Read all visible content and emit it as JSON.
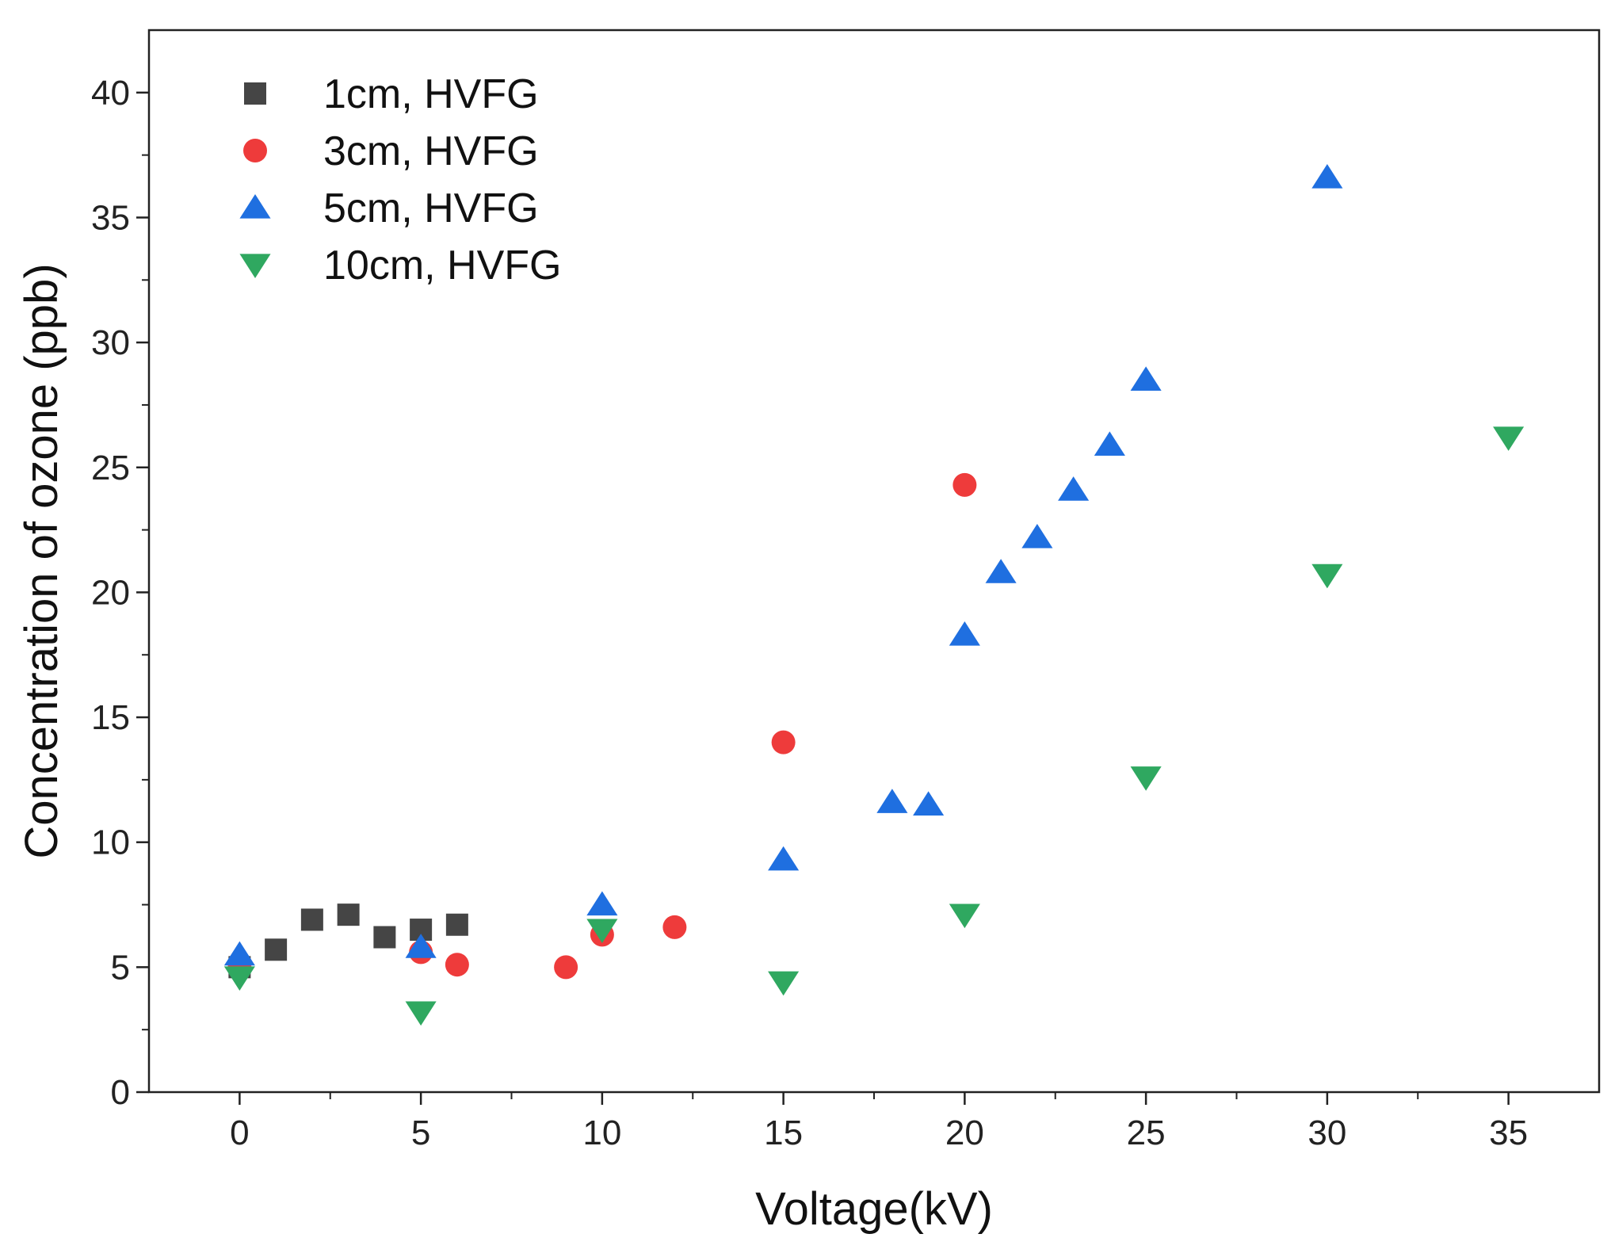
{
  "chart_data": {
    "type": "scatter",
    "title": "",
    "xlabel": "Voltage(kV)",
    "ylabel": "Concentration of ozone (ppb)",
    "xlim": [
      -2.5,
      37.5
    ],
    "ylim": [
      0,
      42.5
    ],
    "xticks": [
      0,
      5,
      10,
      15,
      20,
      25,
      30,
      35
    ],
    "yticks": [
      0,
      5,
      10,
      15,
      20,
      25,
      30,
      35,
      40
    ],
    "grid": false,
    "legend_position": "top-left",
    "series": [
      {
        "name": "1cm, HVFG",
        "marker": "square",
        "color": "#454545",
        "points": [
          [
            0,
            5.0
          ],
          [
            1,
            5.7
          ],
          [
            2,
            6.9
          ],
          [
            3,
            7.1
          ],
          [
            4,
            6.2
          ],
          [
            5,
            6.5
          ],
          [
            6,
            6.7
          ]
        ]
      },
      {
        "name": "3cm, HVFG",
        "marker": "circle",
        "color": "#ee3b3b",
        "points": [
          [
            0,
            5.0
          ],
          [
            5,
            5.6
          ],
          [
            6,
            5.1
          ],
          [
            9,
            5.0
          ],
          [
            10,
            6.3
          ],
          [
            12,
            6.6
          ],
          [
            15,
            14.0
          ],
          [
            20,
            24.3
          ]
        ]
      },
      {
        "name": "5cm, HVFG",
        "marker": "triangle-up",
        "color": "#1f6fe0",
        "points": [
          [
            0,
            5.5
          ],
          [
            5,
            5.8
          ],
          [
            10,
            7.5
          ],
          [
            15,
            9.3
          ],
          [
            18,
            11.6
          ],
          [
            19,
            11.5
          ],
          [
            20,
            18.3
          ],
          [
            21,
            20.8
          ],
          [
            22,
            22.2
          ],
          [
            23,
            24.1
          ],
          [
            24,
            25.9
          ],
          [
            25,
            28.5
          ],
          [
            30,
            36.6
          ]
        ]
      },
      {
        "name": "10cm, HVFG",
        "marker": "triangle-down",
        "color": "#2fa860",
        "points": [
          [
            0,
            4.6
          ],
          [
            5,
            3.2
          ],
          [
            10,
            6.5
          ],
          [
            15,
            4.4
          ],
          [
            20,
            7.1
          ],
          [
            25,
            12.6
          ],
          [
            30,
            20.7
          ],
          [
            35,
            26.2
          ]
        ]
      }
    ]
  }
}
